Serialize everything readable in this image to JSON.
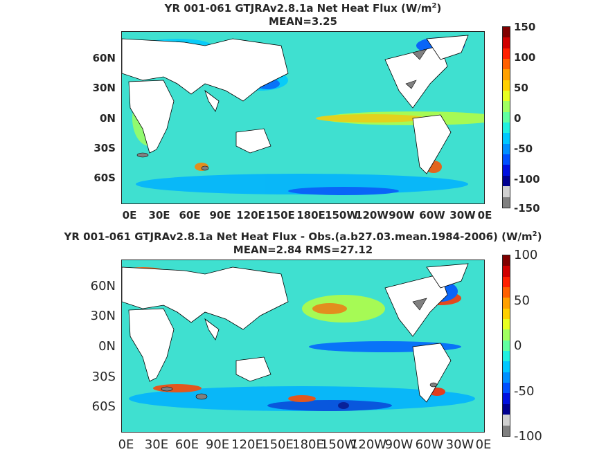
{
  "panels": [
    {
      "title_line1": "YR 001-061 GTJRAv2.8.1a  Net Heat Flux (W/m",
      "title_sup": "2",
      "title_close": ")",
      "title_line2": "MEAN=3.25",
      "lat_labels": [
        "60N",
        "30N",
        "0N",
        "30S",
        "60S"
      ],
      "lon_labels": [
        "0E",
        "30E",
        "60E",
        "90E",
        "120E",
        "150E",
        "180E",
        "150W",
        "120W",
        "90W",
        "60W",
        "30W",
        "0E"
      ],
      "colorbar_ticks": [
        "150",
        "100",
        "50",
        "0",
        "-50",
        "-100",
        "-150"
      ]
    },
    {
      "title_line1": "YR 001-061 GTJRAv2.8.1a  Net Heat Flux - Obs.(a.b27.03.mean.1984-2006) (W/m",
      "title_sup": "2",
      "title_close": ")",
      "title_line2": "MEAN=2.84 RMS=27.12",
      "lat_labels": [
        "60N",
        "30N",
        "0N",
        "30S",
        "60S"
      ],
      "lon_labels": [
        "0E",
        "30E",
        "60E",
        "90E",
        "120E",
        "150E",
        "180E",
        "150W",
        "120W",
        "90W",
        "60W",
        "30W",
        "0E"
      ],
      "colorbar_ticks": [
        "100",
        "50",
        "0",
        "-50",
        "-100"
      ]
    }
  ],
  "colors": {
    "ocean_base": "#3fe0d0",
    "land": "#ffffff",
    "missing": "#808080",
    "colorbar": [
      "#800000",
      "#d00000",
      "#ff2000",
      "#ff6000",
      "#ffa000",
      "#ffd000",
      "#e8ff20",
      "#a0ff60",
      "#60ffa0",
      "#20f0e0",
      "#00c8ff",
      "#0090ff",
      "#0050ff",
      "#0010e0",
      "#000090",
      "#d0d0d0",
      "#808080"
    ]
  }
}
